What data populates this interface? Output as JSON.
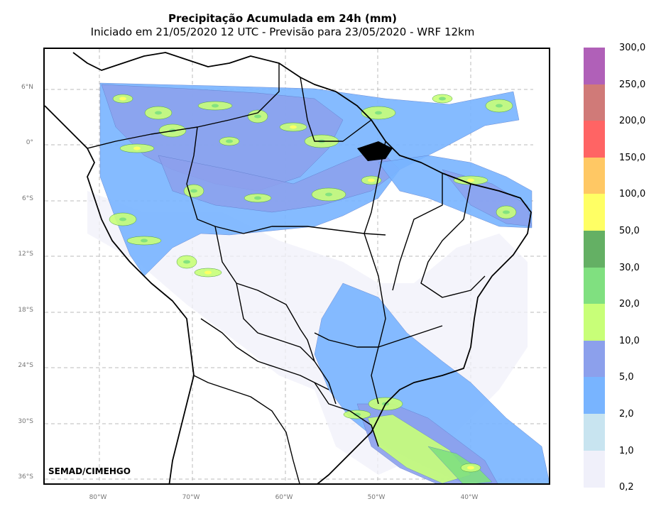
{
  "title": "Precipitação Acumulada em 24h (mm)",
  "subtitle": "Iniciado em 21/05/2020 12 UTC - Previsão para 23/05/2020 - WRF 12km",
  "credit": "SEMAD/CIMEHGO",
  "lat_labels": [
    "6°N",
    "0°",
    "6°S",
    "12°S",
    "18°S",
    "24°S",
    "30°S",
    "36°S"
  ],
  "lon_labels": [
    "80°W",
    "70°W",
    "60°W",
    "50°W",
    "40°W"
  ],
  "colorbar": {
    "levels": [
      "300,0",
      "250,0",
      "200,0",
      "150,0",
      "100,0",
      "50,0",
      "30,0",
      "20,0",
      "10,0",
      "5,0",
      "2,0",
      "1,0",
      "0,2"
    ],
    "colors": [
      "#b060b8",
      "#d07a78",
      "#ff6464",
      "#ffc864",
      "#ffff64",
      "#64b064",
      "#80e080",
      "#c8ff78",
      "#8ca0ec",
      "#78b4ff",
      "#c8e4f0",
      "#f0f0fa"
    ]
  }
}
